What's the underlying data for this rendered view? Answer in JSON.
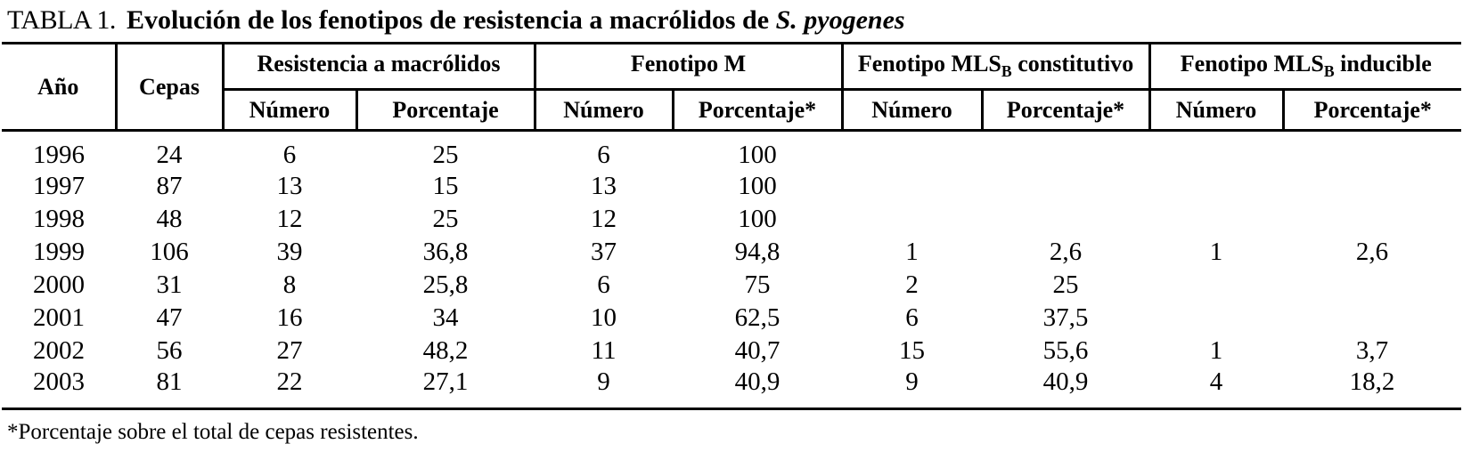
{
  "title": {
    "label": "TABLA 1.",
    "text": "Evolución de los fenotipos de resistencia a macrólidos de",
    "italic": "S. pyogenes"
  },
  "table": {
    "corner_headers": [
      "Año",
      "Cepas"
    ],
    "groups": [
      {
        "pre": "Resistencia a macrólidos",
        "sub": "",
        "post": "",
        "cols": [
          "Número",
          "Porcentaje"
        ]
      },
      {
        "pre": "Fenotipo M",
        "sub": "",
        "post": "",
        "cols": [
          "Número",
          "Porcentaje*"
        ]
      },
      {
        "pre": "Fenotipo MLS",
        "sub": "B",
        "post": " constitutivo",
        "cols": [
          "Número",
          "Porcentaje*"
        ]
      },
      {
        "pre": "Fenotipo MLS",
        "sub": "B",
        "post": " inducible",
        "cols": [
          "Número",
          "Porcentaje*"
        ]
      }
    ],
    "rows": [
      [
        "1996",
        "24",
        "6",
        "25",
        "6",
        "100",
        "",
        "",
        "",
        ""
      ],
      [
        "1997",
        "87",
        "13",
        "15",
        "13",
        "100",
        "",
        "",
        "",
        ""
      ],
      [
        "1998",
        "48",
        "12",
        "25",
        "12",
        "100",
        "",
        "",
        "",
        ""
      ],
      [
        "1999",
        "106",
        "39",
        "36,8",
        "37",
        "94,8",
        "1",
        "2,6",
        "1",
        "2,6"
      ],
      [
        "2000",
        "31",
        "8",
        "25,8",
        "6",
        "75",
        "2",
        "25",
        "",
        ""
      ],
      [
        "2001",
        "47",
        "16",
        "34",
        "10",
        "62,5",
        "6",
        "37,5",
        "",
        ""
      ],
      [
        "2002",
        "56",
        "27",
        "48,2",
        "11",
        "40,7",
        "15",
        "55,6",
        "1",
        "3,7"
      ],
      [
        "2003",
        "81",
        "22",
        "27,1",
        "9",
        "40,9",
        "9",
        "40,9",
        "4",
        "18,2"
      ]
    ]
  },
  "footnote": "*Porcentaje sobre el total de cepas resistentes.",
  "colors": {
    "text": "#000000",
    "background": "#ffffff",
    "rule": "#000000"
  },
  "chart_data": {
    "type": "table",
    "title": "TABLA 1. Evolución de los fenotipos de resistencia a macrólidos de S. pyogenes",
    "columns": [
      "Año",
      "Cepas",
      "Resistencia a macrólidos - Número",
      "Resistencia a macrólidos - Porcentaje",
      "Fenotipo M - Número",
      "Fenotipo M - Porcentaje*",
      "Fenotipo MLSB constitutivo - Número",
      "Fenotipo MLSB constitutivo - Porcentaje*",
      "Fenotipo MLSB inducible - Número",
      "Fenotipo MLSB inducible - Porcentaje*"
    ],
    "rows": [
      [
        1996,
        24,
        6,
        25,
        6,
        100,
        null,
        null,
        null,
        null
      ],
      [
        1997,
        87,
        13,
        15,
        13,
        100,
        null,
        null,
        null,
        null
      ],
      [
        1998,
        48,
        12,
        25,
        12,
        100,
        null,
        null,
        null,
        null
      ],
      [
        1999,
        106,
        39,
        36.8,
        37,
        94.8,
        1,
        2.6,
        1,
        2.6
      ],
      [
        2000,
        31,
        8,
        25.8,
        6,
        75,
        2,
        25,
        null,
        null
      ],
      [
        2001,
        47,
        16,
        34,
        10,
        62.5,
        6,
        37.5,
        null,
        null
      ],
      [
        2002,
        56,
        27,
        48.2,
        11,
        40.7,
        15,
        55.6,
        1,
        3.7
      ],
      [
        2003,
        81,
        22,
        27.1,
        9,
        40.9,
        9,
        40.9,
        4,
        18.2
      ]
    ],
    "footnote": "*Porcentaje sobre el total de cepas resistentes."
  }
}
